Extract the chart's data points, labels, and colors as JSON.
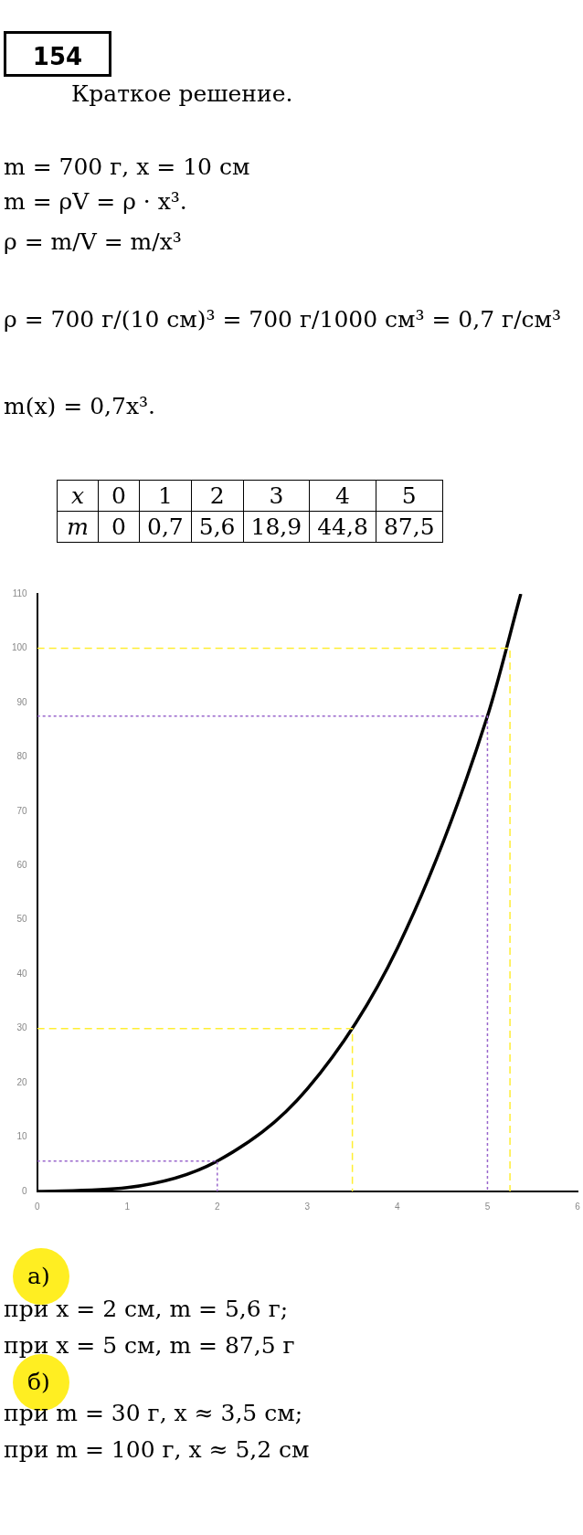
{
  "chart_data": {
    "type": "line",
    "title": "154",
    "subtitle": "Краткое решение.",
    "annotations": [
      "m = 700 г, x = 10 см",
      "m = ρV = ρ · x³.",
      "ρ = m/V = m/x³",
      "ρ = 700 г/(10 см)³ = 700 г/1000 см³ = 0,7 г/см³",
      "m(x) = 0,7x³.",
      "а)",
      "при x = 2 см, m = 5,6 г;",
      "при x = 5 см, m = 87,5 г",
      "б)",
      "при m = 30 г, x ≈ 3,5 см;",
      "при m = 100 г, x ≈ 5,2 см",
      "x",
      "0",
      "1",
      "2",
      "3",
      "4",
      "5",
      "m",
      "0",
      "0,7",
      "5,6",
      "18,9",
      "44,8",
      "87,5"
    ],
    "xlim": [
      0,
      6
    ],
    "xticks": [
      0,
      1,
      2,
      3,
      4,
      5,
      6
    ],
    "ylim": [
      0,
      110
    ],
    "yticks": [
      0,
      10,
      20,
      30,
      40,
      50,
      60,
      70,
      80,
      90,
      100,
      110
    ],
    "grid": false,
    "legend": false,
    "marker": "none",
    "series": [
      {
        "color": "#000000",
        "x": [
          0,
          1,
          2,
          3,
          4,
          5,
          5.37
        ],
        "values": [
          0,
          0.7,
          5.6,
          18.9,
          44.8,
          87.5,
          110
        ],
        "line_style": "solid"
      },
      {
        "color": "#ffee33",
        "x": [
          0,
          5.25,
          5.25
        ],
        "values": [
          100,
          100,
          0
        ],
        "line_style": "dashed"
      },
      {
        "color": "#9966cc",
        "x": [
          0,
          5,
          5
        ],
        "values": [
          87.5,
          87.5,
          0
        ],
        "line_style": "dotted"
      },
      {
        "color": "#ffee33",
        "x": [
          0,
          3.5,
          3.5
        ],
        "values": [
          30,
          30,
          0
        ],
        "line_style": "dashed"
      },
      {
        "color": "#9966cc",
        "x": [
          0,
          2,
          2
        ],
        "values": [
          5.6,
          5.6,
          0
        ],
        "line_style": "dotted"
      }
    ]
  }
}
